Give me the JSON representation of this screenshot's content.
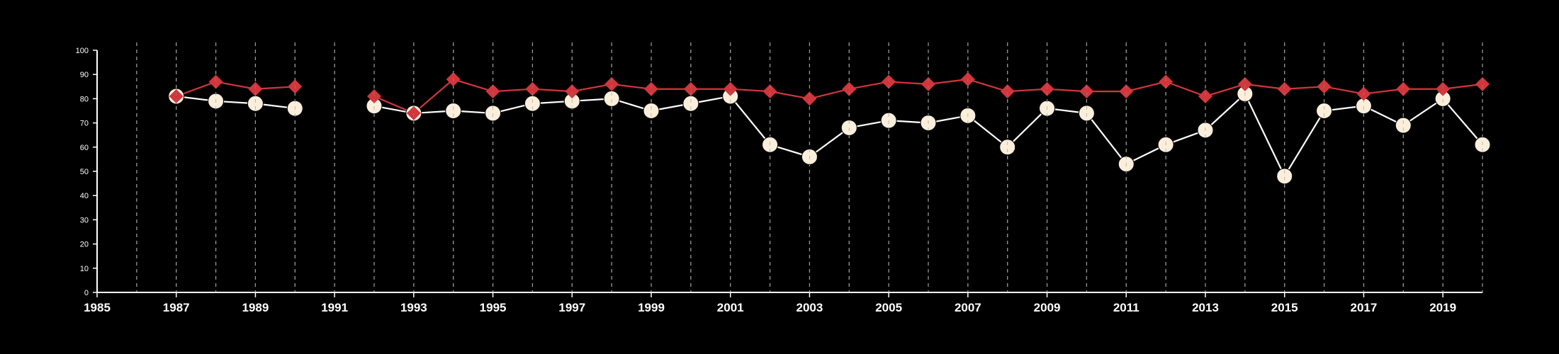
{
  "colors": {
    "background": "#000000",
    "axis": "#ffffff",
    "grid": "#b0b0b0",
    "series_red": "#d2363c",
    "series_cream": "#fbefdc",
    "series_cream_line": "#ffffff"
  },
  "chart_data": {
    "type": "line",
    "title": "",
    "xlabel": "",
    "ylabel": "",
    "xlim": [
      1985,
      2020
    ],
    "ylim": [
      0,
      100
    ],
    "x_ticks": [
      1985,
      1987,
      1989,
      1991,
      1993,
      1995,
      1997,
      1999,
      2001,
      2003,
      2005,
      2007,
      2009,
      2011,
      2013,
      2015,
      2017,
      2019
    ],
    "y_ticks": [
      0,
      10,
      20,
      30,
      40,
      50,
      60,
      70,
      80,
      90,
      100
    ],
    "grid_years": [
      1986,
      1987,
      1988,
      1989,
      1990,
      1991,
      1992,
      1993,
      1994,
      1995,
      1996,
      1997,
      1998,
      1999,
      2000,
      2001,
      2002,
      2003,
      2004,
      2005,
      2006,
      2007,
      2008,
      2009,
      2010,
      2011,
      2012,
      2013,
      2014,
      2015,
      2016,
      2017,
      2018,
      2019,
      2020
    ],
    "vertical_grid": true,
    "legend": "none",
    "series": [
      {
        "marker": "diamond",
        "color": "#d2363c",
        "points": [
          [
            1987,
            81
          ],
          [
            1988,
            87
          ],
          [
            1989,
            84
          ],
          [
            1990,
            85
          ],
          [
            1992,
            81
          ],
          [
            1993,
            74
          ],
          [
            1994,
            88
          ],
          [
            1995,
            83
          ],
          [
            1996,
            84
          ],
          [
            1997,
            83
          ],
          [
            1998,
            86
          ],
          [
            1999,
            84
          ],
          [
            2000,
            84
          ],
          [
            2001,
            84
          ],
          [
            2002,
            83
          ],
          [
            2003,
            80
          ],
          [
            2004,
            84
          ],
          [
            2005,
            87
          ],
          [
            2006,
            86
          ],
          [
            2007,
            88
          ],
          [
            2008,
            83
          ],
          [
            2009,
            84
          ],
          [
            2010,
            83
          ],
          [
            2011,
            83
          ],
          [
            2012,
            87
          ],
          [
            2013,
            81
          ],
          [
            2014,
            86
          ],
          [
            2015,
            84
          ],
          [
            2016,
            85
          ],
          [
            2017,
            82
          ],
          [
            2018,
            84
          ],
          [
            2019,
            84
          ],
          [
            2020,
            86
          ]
        ]
      },
      {
        "marker": "circle",
        "color": "#fbefdc",
        "points": [
          [
            1987,
            81
          ],
          [
            1988,
            79
          ],
          [
            1989,
            78
          ],
          [
            1990,
            76
          ],
          [
            1992,
            77
          ],
          [
            1993,
            74
          ],
          [
            1994,
            75
          ],
          [
            1995,
            74
          ],
          [
            1996,
            78
          ],
          [
            1997,
            79
          ],
          [
            1998,
            80
          ],
          [
            1999,
            75
          ],
          [
            2000,
            78
          ],
          [
            2001,
            81
          ],
          [
            2002,
            61
          ],
          [
            2003,
            56
          ],
          [
            2004,
            68
          ],
          [
            2005,
            71
          ],
          [
            2006,
            70
          ],
          [
            2007,
            73
          ],
          [
            2008,
            60
          ],
          [
            2009,
            76
          ],
          [
            2010,
            74
          ],
          [
            2011,
            53
          ],
          [
            2012,
            61
          ],
          [
            2013,
            67
          ],
          [
            2014,
            82
          ],
          [
            2015,
            48
          ],
          [
            2016,
            75
          ],
          [
            2017,
            77
          ],
          [
            2018,
            69
          ],
          [
            2019,
            80
          ],
          [
            2020,
            61
          ]
        ]
      }
    ]
  }
}
